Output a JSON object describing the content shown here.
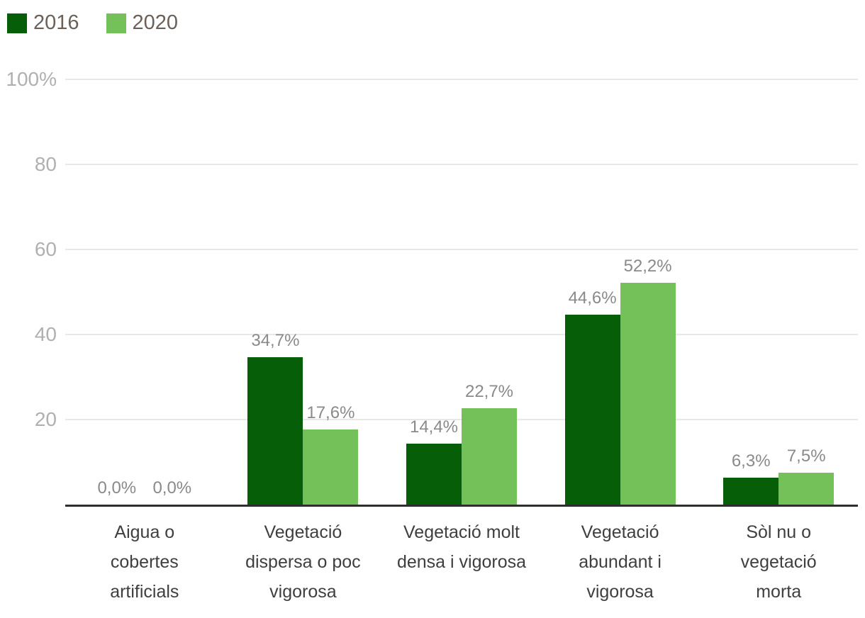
{
  "chart_data": {
    "type": "bar",
    "categories": [
      "Aigua o cobertes artificials",
      "Vegetació dispersa o poc vigorosa",
      "Vegetació molt densa i vigorosa",
      "Vegetació abundant i vigorosa",
      "Sòl nu o vegetació morta"
    ],
    "category_lines": [
      [
        "Aigua o",
        "cobertes",
        "artificials"
      ],
      [
        "Vegetació",
        "dispersa o poc",
        "vigorosa"
      ],
      [
        "Vegetació molt",
        "densa i vigorosa"
      ],
      [
        "Vegetació",
        "abundant i",
        "vigorosa"
      ],
      [
        "Sòl nu o",
        "vegetació",
        "morta"
      ]
    ],
    "series": [
      {
        "name": "2016",
        "color": "#075e09",
        "values": [
          0.0,
          34.7,
          14.4,
          44.6,
          6.3
        ],
        "value_labels": [
          "0,0%",
          "34,7%",
          "14,4%",
          "44,6%",
          "6,3%"
        ]
      },
      {
        "name": "2020",
        "color": "#74c15a",
        "values": [
          0.0,
          17.6,
          22.7,
          52.2,
          7.5
        ],
        "value_labels": [
          "0,0%",
          "17,6%",
          "22,7%",
          "52,2%",
          "7,5%"
        ]
      }
    ],
    "title": "",
    "xlabel": "",
    "ylabel": "",
    "ylim": [
      0,
      100
    ],
    "grid": true,
    "legend_position": "top-left",
    "yticks": [
      {
        "value": 100,
        "label": "100%"
      },
      {
        "value": 80,
        "label": "80"
      },
      {
        "value": 60,
        "label": "60"
      },
      {
        "value": 40,
        "label": "40"
      },
      {
        "value": 20,
        "label": "20"
      }
    ]
  },
  "style": {
    "gridline_color": "#e8e8e8",
    "axis_line_color": "#2e2e2e",
    "tick_label_color": "#b0b0b0",
    "value_label_color": "#8a8a8a",
    "category_label_color": "#3f3f3f",
    "legend_text_color": "#6c6159",
    "background": "#ffffff"
  }
}
